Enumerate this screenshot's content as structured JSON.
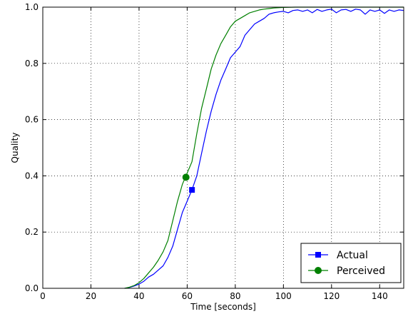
{
  "chart_data": {
    "type": "line",
    "title": "",
    "xlabel": "Time [seconds]",
    "ylabel": "Quality",
    "xlim": [
      0,
      150
    ],
    "ylim": [
      0.0,
      1.0
    ],
    "xticks": [
      0,
      20,
      40,
      60,
      80,
      100,
      120,
      140
    ],
    "xtick_labels": [
      "0",
      "20",
      "40",
      "60",
      "80",
      "100",
      "120",
      "140"
    ],
    "yticks": [
      0.0,
      0.2,
      0.4,
      0.6,
      0.8,
      1.0
    ],
    "ytick_labels": [
      "0.0",
      "0.2",
      "0.4",
      "0.6",
      "0.8",
      "1.0"
    ],
    "grid": true,
    "legend_position": "bottom-right",
    "series": [
      {
        "name": "Actual",
        "color": "#0000ff",
        "marker": "square",
        "marker_point": [
          62,
          0.35
        ],
        "x": [
          34,
          36,
          38,
          40,
          42,
          44,
          46,
          48,
          50,
          52,
          54,
          56,
          58,
          60,
          62,
          64,
          66,
          68,
          70,
          72,
          74,
          76,
          78,
          80,
          82,
          84,
          86,
          88,
          90,
          92,
          94,
          96,
          98,
          100,
          102,
          104,
          106,
          108,
          110,
          112,
          114,
          116,
          118,
          120,
          122,
          124,
          126,
          128,
          130,
          132,
          134,
          136,
          138,
          140,
          142,
          144,
          146,
          148,
          150
        ],
        "y": [
          0.0,
          0.003,
          0.008,
          0.015,
          0.025,
          0.04,
          0.05,
          0.065,
          0.08,
          0.11,
          0.15,
          0.21,
          0.27,
          0.31,
          0.35,
          0.4,
          0.48,
          0.56,
          0.63,
          0.69,
          0.74,
          0.78,
          0.82,
          0.84,
          0.86,
          0.9,
          0.92,
          0.94,
          0.95,
          0.96,
          0.975,
          0.98,
          0.983,
          0.985,
          0.98,
          0.988,
          0.99,
          0.985,
          0.99,
          0.98,
          0.992,
          0.985,
          0.99,
          0.993,
          0.98,
          0.99,
          0.992,
          0.985,
          0.993,
          0.99,
          0.975,
          0.99,
          0.985,
          0.99,
          0.978,
          0.99,
          0.985,
          0.99,
          0.988
        ]
      },
      {
        "name": "Perceived",
        "color": "#008000",
        "marker": "circle",
        "marker_point": [
          59.5,
          0.395
        ],
        "x": [
          34,
          36,
          38,
          40,
          42,
          44,
          46,
          48,
          50,
          52,
          54,
          56,
          58,
          60,
          62,
          64,
          66,
          68,
          70,
          72,
          74,
          76,
          78,
          80,
          82,
          84,
          86,
          88,
          90,
          92,
          94,
          96,
          98,
          100,
          105,
          110,
          115,
          120,
          125,
          130,
          135,
          140,
          145,
          150
        ],
        "y": [
          0.0,
          0.004,
          0.01,
          0.02,
          0.035,
          0.055,
          0.075,
          0.1,
          0.13,
          0.17,
          0.24,
          0.31,
          0.37,
          0.41,
          0.45,
          0.55,
          0.64,
          0.71,
          0.78,
          0.83,
          0.87,
          0.9,
          0.93,
          0.95,
          0.96,
          0.97,
          0.98,
          0.985,
          0.99,
          0.993,
          0.995,
          0.997,
          0.998,
          0.999,
          1.0,
          1.0,
          1.0,
          1.0,
          1.0,
          1.0,
          1.0,
          1.0,
          1.0,
          1.0
        ]
      }
    ]
  }
}
